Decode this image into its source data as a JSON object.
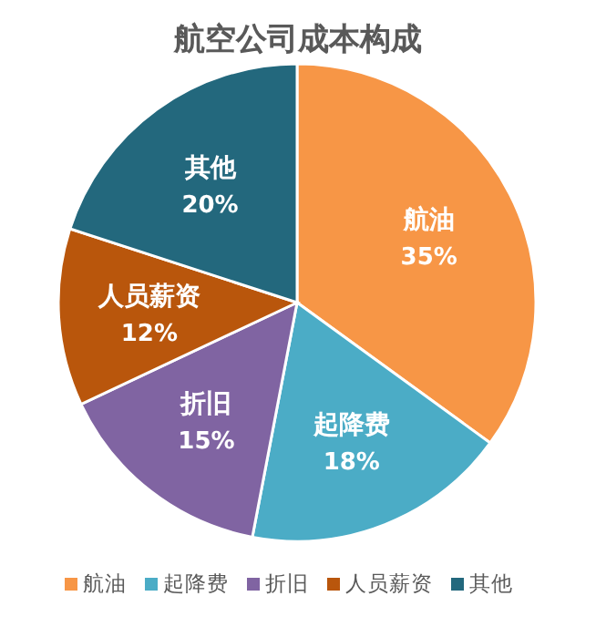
{
  "chart_data": {
    "type": "pie",
    "title": "航空公司成本构成",
    "categories": [
      "航油",
      "起降费",
      "折旧",
      "人员薪资",
      "其他"
    ],
    "values": [
      35,
      18,
      15,
      12,
      20
    ],
    "colors": [
      "#f79646",
      "#4bacc6",
      "#8064a2",
      "#b9560c",
      "#23687d"
    ],
    "value_labels": [
      "35%",
      "18%",
      "15%",
      "12%",
      "20%"
    ],
    "legend": "bottom"
  }
}
